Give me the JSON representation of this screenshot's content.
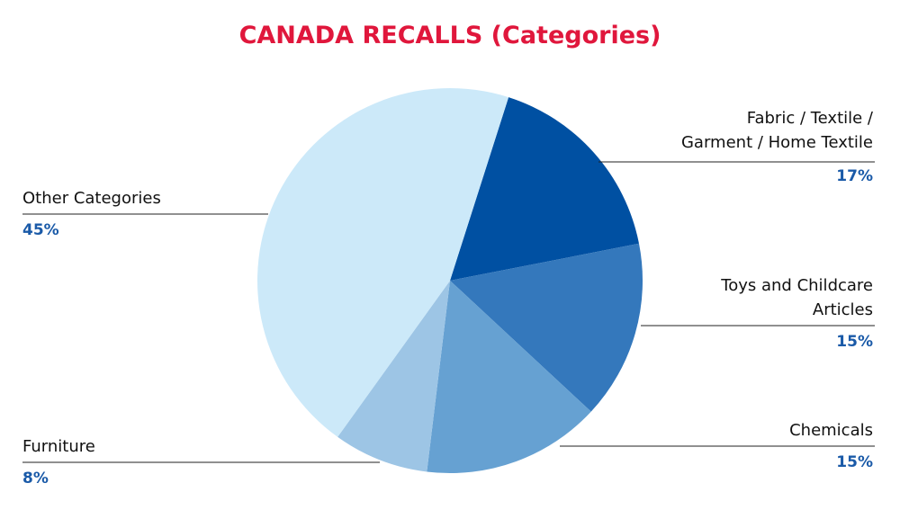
{
  "chart_data": {
    "type": "pie",
    "title": "CANADA RECALLS (Categories)",
    "categories": [
      "Fabric / Textile /\nGarment / Home Textile",
      "Toys and Childcare\nArticles",
      "Chemicals",
      "Furniture",
      "Other Categories"
    ],
    "values": [
      17,
      15,
      15,
      8,
      45
    ],
    "value_labels": [
      "17%",
      "15%",
      "15%",
      "8%",
      "45%"
    ],
    "colors": [
      "#0050a2",
      "#3478bc",
      "#66a1d2",
      "#9dc5e5",
      "#cce9f9"
    ]
  }
}
